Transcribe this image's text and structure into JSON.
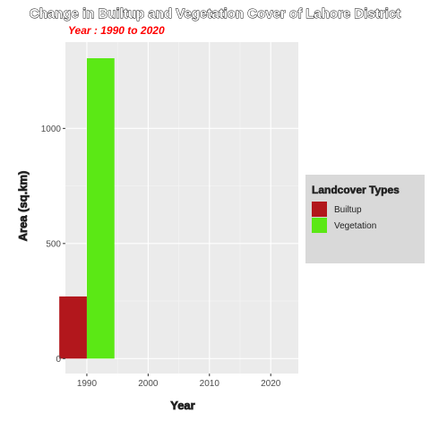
{
  "chart_data": {
    "type": "bar",
    "title": "Change in Builtup and Vegetation Cover of Lahore District",
    "subtitle": "Year : 1990 to 2020",
    "xlabel": "Year",
    "ylabel": "Area (sq.km)",
    "x_ticks": [
      "1990",
      "2000",
      "2010",
      "2020"
    ],
    "y_ticks": [
      0,
      500,
      1000
    ],
    "xlim": [
      1986.5,
      2024.5
    ],
    "ylim": [
      -65,
      1375
    ],
    "grid": true,
    "legend": {
      "title": "Landcover Types",
      "placement": "right",
      "entries": [
        "Builtup",
        "Vegetation"
      ]
    },
    "series": [
      {
        "name": "Builtup",
        "color": "#b2171c",
        "x": [
          1990
        ],
        "values": [
          270
        ]
      },
      {
        "name": "Vegetation",
        "color": "#5be815",
        "x": [
          1990
        ],
        "values": [
          1305
        ]
      }
    ]
  }
}
